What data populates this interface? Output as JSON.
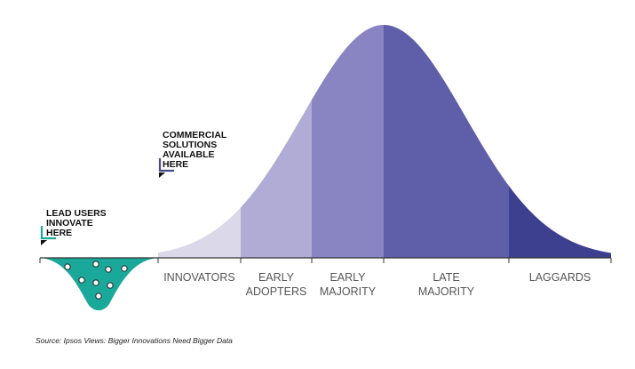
{
  "segments": [
    {
      "lines": [
        "INNOVATORS"
      ],
      "color": "#dbd8ea"
    },
    {
      "lines": [
        "EARLY",
        "ADOPTERS"
      ],
      "color": "#b0acd6"
    },
    {
      "lines": [
        "EARLY",
        "MAJORITY"
      ],
      "color": "#8985c2"
    },
    {
      "lines": [
        "LATE",
        "MAJORITY"
      ],
      "color": "#5f5ea8"
    },
    {
      "lines": [
        "LAGGARDS"
      ],
      "color": "#3d3f8f"
    }
  ],
  "callouts": {
    "commercial": {
      "lines": [
        "COMMERCIAL",
        "SOLUTIONS",
        "AVAILABLE",
        "HERE"
      ],
      "bracket_color": "#4a4a8c"
    },
    "lead_users": {
      "lines": [
        "LEAD USERS",
        "INNOVATE",
        "HERE"
      ],
      "bracket_color": "#1aa89a"
    }
  },
  "lead_users_pool": {
    "color": "#1aa89a",
    "dots": 8
  },
  "source": "Source: Ipsos Views: Bigger Innovations Need Bigger Data"
}
